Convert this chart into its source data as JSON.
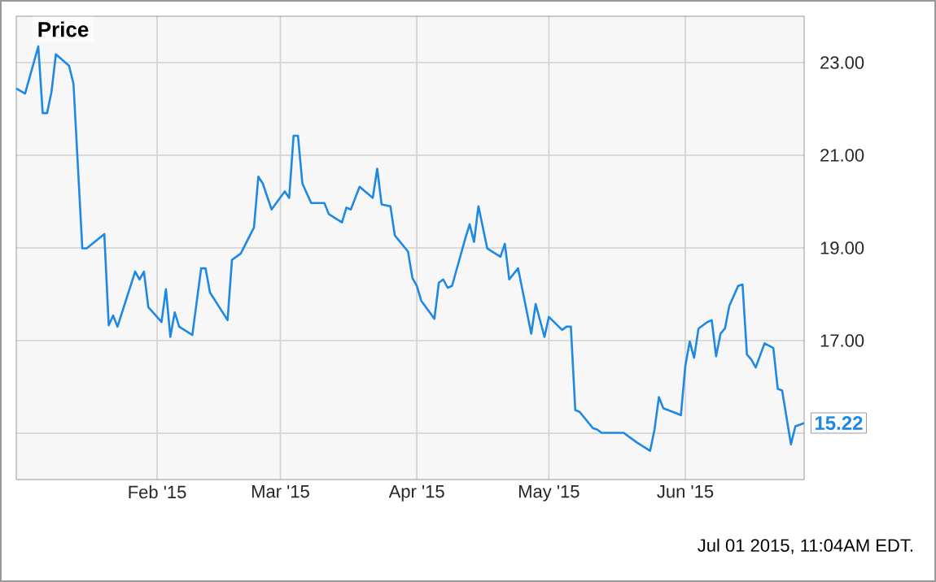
{
  "chart_data": {
    "type": "line",
    "title": "Price",
    "x": [
      "2014-12-31",
      "2015-01-02",
      "2015-01-05",
      "2015-01-06",
      "2015-01-07",
      "2015-01-08",
      "2015-01-09",
      "2015-01-12",
      "2015-01-13",
      "2015-01-15",
      "2015-01-16",
      "2015-01-20",
      "2015-01-21",
      "2015-01-22",
      "2015-01-23",
      "2015-01-27",
      "2015-01-28",
      "2015-01-29",
      "2015-01-30",
      "2015-02-02",
      "2015-02-03",
      "2015-02-04",
      "2015-02-05",
      "2015-02-06",
      "2015-02-09",
      "2015-02-11",
      "2015-02-12",
      "2015-02-13",
      "2015-02-17",
      "2015-02-18",
      "2015-02-20",
      "2015-02-23",
      "2015-02-24",
      "2015-02-25",
      "2015-02-27",
      "2015-03-02",
      "2015-03-03",
      "2015-03-04",
      "2015-03-05",
      "2015-03-06",
      "2015-03-08",
      "2015-03-11",
      "2015-03-12",
      "2015-03-15",
      "2015-03-16",
      "2015-03-17",
      "2015-03-19",
      "2015-03-22",
      "2015-03-23",
      "2015-03-24",
      "2015-03-26",
      "2015-03-27",
      "2015-03-30",
      "2015-03-31",
      "2015-04-01",
      "2015-04-02",
      "2015-04-05",
      "2015-04-06",
      "2015-04-07",
      "2015-04-08",
      "2015-04-09",
      "2015-04-12",
      "2015-04-13",
      "2015-04-14",
      "2015-04-15",
      "2015-04-17",
      "2015-04-20",
      "2015-04-21",
      "2015-04-22",
      "2015-04-24",
      "2015-04-27",
      "2015-04-28",
      "2015-04-30",
      "2015-05-01",
      "2015-05-04",
      "2015-05-05",
      "2015-05-06",
      "2015-05-07",
      "2015-05-08",
      "2015-05-11",
      "2015-05-12",
      "2015-05-13",
      "2015-05-18",
      "2015-05-21",
      "2015-05-24",
      "2015-05-25",
      "2015-05-26",
      "2015-05-27",
      "2015-05-30",
      "2015-05-31",
      "2015-06-01",
      "2015-06-02",
      "2015-06-03",
      "2015-06-04",
      "2015-06-06",
      "2015-06-07",
      "2015-06-08",
      "2015-06-09",
      "2015-06-10",
      "2015-06-11",
      "2015-06-13",
      "2015-06-14",
      "2015-06-15",
      "2015-06-16",
      "2015-06-17",
      "2015-06-19",
      "2015-06-21",
      "2015-06-22",
      "2015-06-23",
      "2015-06-25",
      "2015-06-26",
      "2015-06-28"
    ],
    "values": [
      22.44,
      22.33,
      23.35,
      21.91,
      21.91,
      22.37,
      23.18,
      22.93,
      22.54,
      18.99,
      18.99,
      19.3,
      17.33,
      17.54,
      17.3,
      18.49,
      18.32,
      18.49,
      17.72,
      17.4,
      18.11,
      17.08,
      17.61,
      17.3,
      17.12,
      18.56,
      18.56,
      18.04,
      17.44,
      18.74,
      18.88,
      19.44,
      20.54,
      20.39,
      19.83,
      20.22,
      20.08,
      21.42,
      21.42,
      20.39,
      19.97,
      19.97,
      19.73,
      19.55,
      19.87,
      19.83,
      20.32,
      20.08,
      20.71,
      19.94,
      19.9,
      19.27,
      18.92,
      18.35,
      18.18,
      17.86,
      17.47,
      18.25,
      18.32,
      18.14,
      18.18,
      19.2,
      19.51,
      19.13,
      19.9,
      18.99,
      18.81,
      19.09,
      18.32,
      18.56,
      17.15,
      17.79,
      17.08,
      17.51,
      17.23,
      17.3,
      17.3,
      15.5,
      15.46,
      15.11,
      15.08,
      15.01,
      15.01,
      14.8,
      14.62,
      15.08,
      15.78,
      15.54,
      15.43,
      15.39,
      16.45,
      16.98,
      16.63,
      17.26,
      17.4,
      17.44,
      16.66,
      17.15,
      17.26,
      17.75,
      18.18,
      18.21,
      16.7,
      16.59,
      16.42,
      16.94,
      16.84,
      15.96,
      15.92,
      14.76,
      15.15,
      15.22
    ],
    "color": "#1e88e5",
    "xlim": [
      "2014-12-31",
      "2015-06-28"
    ],
    "xticks": [
      {
        "value": "2015-02-01",
        "label": "Feb '15"
      },
      {
        "value": "2015-03-01",
        "label": "Mar '15"
      },
      {
        "value": "2015-04-01",
        "label": "Apr '15"
      },
      {
        "value": "2015-05-01",
        "label": "May '15"
      },
      {
        "value": "2015-06-01",
        "label": "Jun '15"
      }
    ],
    "ylim": [
      14,
      24
    ],
    "yticks": [
      {
        "value": 15,
        "label": null
      },
      {
        "value": 17,
        "label": "17.00"
      },
      {
        "value": 19,
        "label": "19.00"
      },
      {
        "value": 21,
        "label": "21.00"
      },
      {
        "value": 23,
        "label": "23.00"
      }
    ],
    "grid": true,
    "annotations": [
      {
        "text": "15.22",
        "x": "2015-06-28",
        "y": 15.22
      },
      "Jul 01 2015, 11:04AM EDT."
    ]
  }
}
